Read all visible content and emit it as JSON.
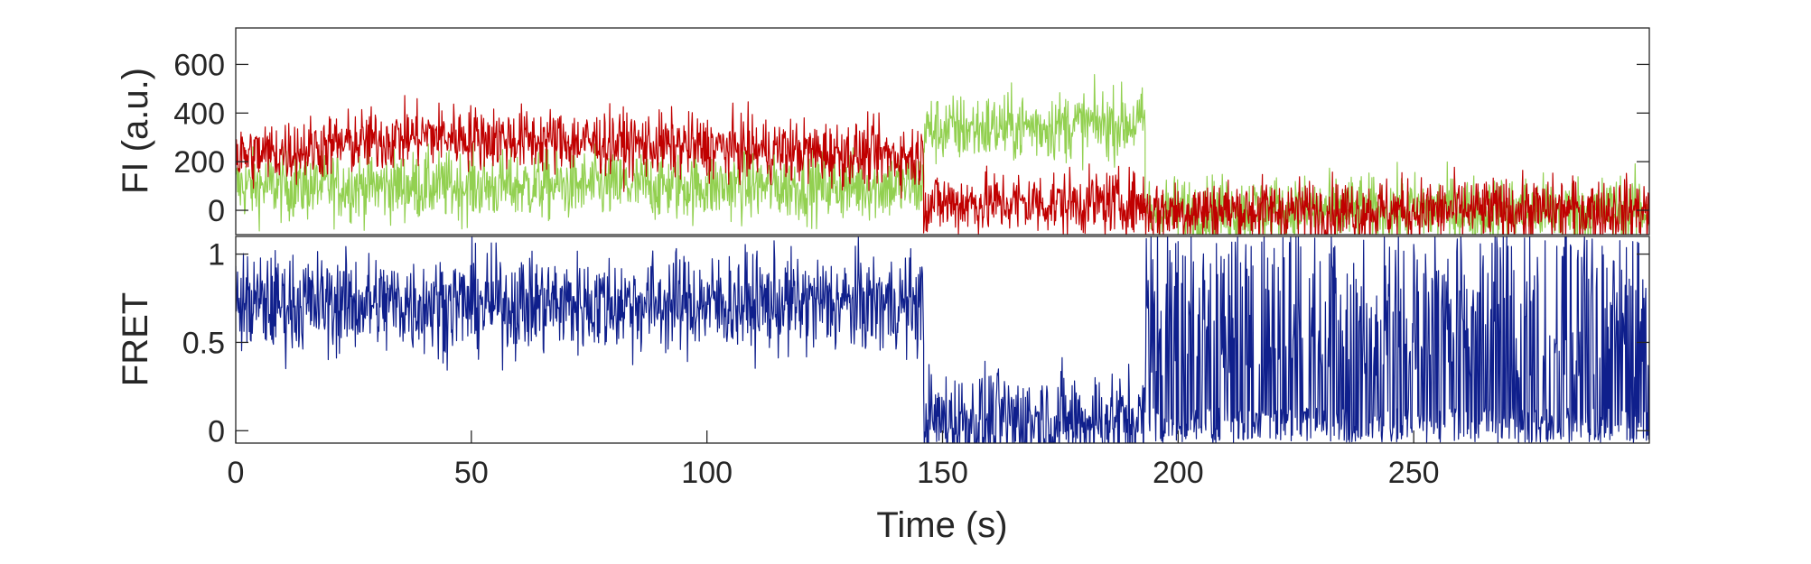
{
  "chart_data": [
    {
      "type": "line",
      "ylabel": "FI (a.u.)",
      "xlim": [
        0,
        300
      ],
      "ylim": [
        -100,
        750
      ],
      "yticks": [
        0,
        200,
        400,
        600
      ],
      "grid": false,
      "series": [
        {
          "color": "#92d050",
          "noise": 70,
          "segments": [
            {
              "x": [
                0,
                146
              ],
              "y": [
                100,
                100
              ]
            },
            {
              "x": [
                146,
                193
              ],
              "y": [
                330,
                360
              ]
            },
            {
              "x": [
                193,
                300
              ],
              "y": [
                0,
                0
              ]
            }
          ]
        },
        {
          "color": "#c00000",
          "noise": 65,
          "segments": [
            {
              "x": [
                0,
                40
              ],
              "y": [
                220,
                310
              ]
            },
            {
              "x": [
                40,
                146
              ],
              "y": [
                310,
                220
              ]
            },
            {
              "x": [
                146,
                193
              ],
              "y": [
                30,
                30
              ]
            },
            {
              "x": [
                193,
                300
              ],
              "y": [
                0,
                0
              ]
            }
          ]
        }
      ]
    },
    {
      "type": "line",
      "ylabel": "FRET",
      "xlabel": "Time (s)",
      "xlim": [
        0,
        300
      ],
      "ylim": [
        -0.07,
        1.1
      ],
      "yticks": [
        0,
        0.5,
        1
      ],
      "xticks": [
        0,
        50,
        100,
        150,
        200,
        250
      ],
      "grid": false,
      "series": [
        {
          "color": "#0f1f8c",
          "noise": 0.14,
          "segments": [
            {
              "x": [
                0,
                146
              ],
              "y": [
                0.72,
                0.72
              ]
            },
            {
              "x": [
                146,
                193
              ],
              "y": [
                0.06,
                0.06
              ]
            },
            {
              "x": [
                193,
                300
              ],
              "y": [
                0.45,
                0.45
              ]
            }
          ]
        }
      ]
    }
  ]
}
